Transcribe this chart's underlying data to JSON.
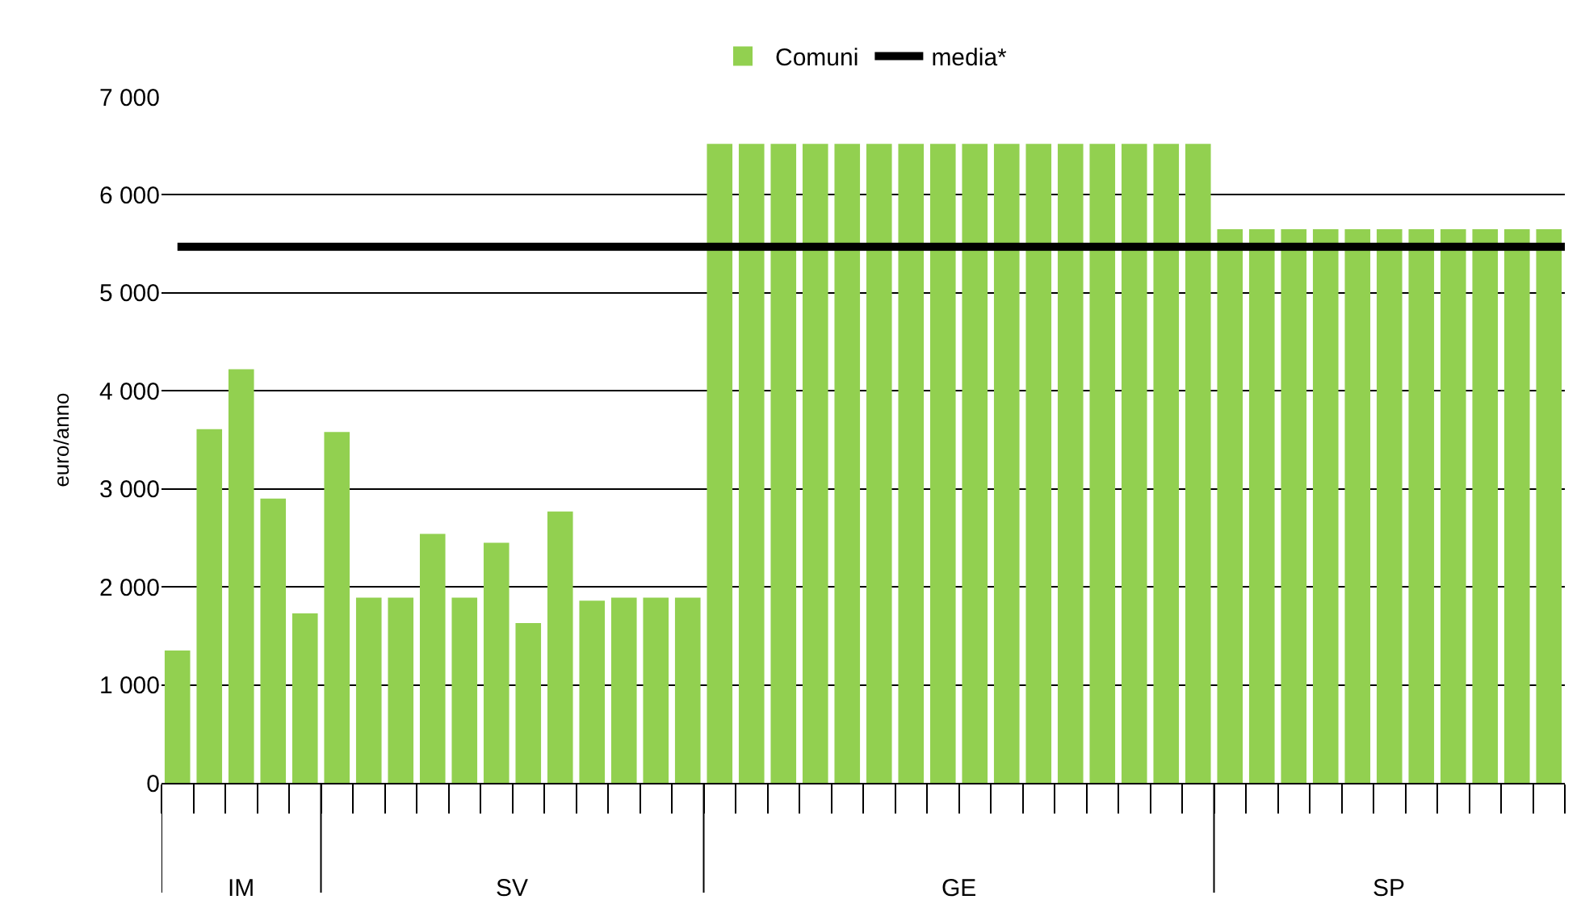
{
  "chart_data": {
    "type": "bar",
    "ylabel": "euro/anno",
    "categories": [
      null,
      null,
      null,
      null,
      null,
      null,
      null,
      null,
      null,
      null,
      null,
      null,
      null,
      null,
      null,
      null,
      null,
      null,
      null,
      null,
      null,
      null,
      null,
      null,
      null,
      null,
      null,
      null,
      null,
      null,
      null,
      null,
      null,
      null,
      null,
      null,
      null,
      null,
      null,
      null,
      null,
      null,
      null,
      null
    ],
    "series": [
      {
        "name": "Comuni",
        "color": "#92d050",
        "values": [
          1350,
          3610,
          4220,
          2900,
          1730,
          3580,
          1890,
          1890,
          2540,
          1890,
          2450,
          1630,
          2770,
          1860,
          1890,
          1890,
          1890,
          6520,
          6520,
          6520,
          6520,
          6520,
          6520,
          6520,
          6520,
          6520,
          6520,
          6520,
          6520,
          6520,
          6520,
          6520,
          6520,
          5650,
          5650,
          5650,
          5650,
          5650,
          5650,
          5650,
          5650,
          5650,
          5650,
          5650
        ]
      }
    ],
    "ref_lines": [
      {
        "axis": "y",
        "value": 5470,
        "label": "media*",
        "color": "#000000"
      }
    ],
    "annotations": [
      "IM",
      "SV",
      "GE",
      "SP"
    ],
    "ylim": [
      0,
      7000
    ],
    "yticks": [
      0,
      {
        "value": 1000,
        "label": "1 000"
      },
      {
        "value": 2000,
        "label": "2 000"
      },
      {
        "value": 3000,
        "label": "3 000"
      },
      {
        "value": 4000,
        "label": "4 000"
      },
      {
        "value": 5000,
        "label": "5 000"
      },
      {
        "value": 6000,
        "label": "6 000"
      },
      {
        "value": 7000,
        "label": "7 000"
      }
    ],
    "grid": "y",
    "legend": "top"
  }
}
